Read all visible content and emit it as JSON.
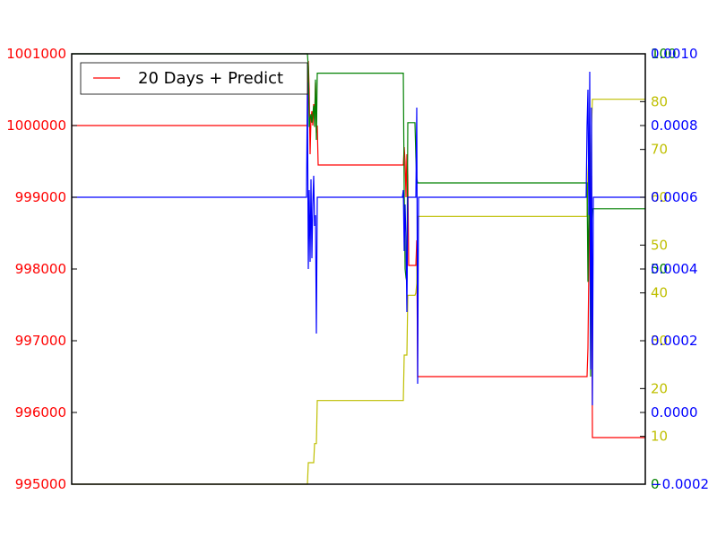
{
  "chart_data": {
    "type": "line",
    "title": "",
    "xlabel": "",
    "legend": {
      "entries": [
        "20 Days + Predict"
      ],
      "placement": "top-left"
    },
    "grid": false,
    "axes": [
      {
        "id": "red",
        "side": "left",
        "color": "#ff0000",
        "ylim": [
          995000,
          1001000
        ],
        "ticks": [
          995000,
          996000,
          997000,
          998000,
          999000,
          1000000,
          1001000
        ],
        "tick_labels": [
          "995000",
          "996000",
          "997000",
          "998000",
          "999000",
          "1000000",
          "1001000"
        ]
      },
      {
        "id": "yellow",
        "side": "right",
        "color": "#bfbf00",
        "ylim": [
          0,
          90
        ],
        "ticks": [
          10,
          20,
          30,
          40,
          50,
          60,
          70,
          80
        ],
        "tick_labels": [
          "10",
          "20",
          "30",
          "40",
          "50",
          "60",
          "70",
          "80"
        ]
      },
      {
        "id": "green",
        "side": "right",
        "color": "#008000",
        "ylim": [
          0,
          100
        ],
        "ticks": [
          0,
          50,
          100
        ],
        "tick_labels": [
          "0",
          "50",
          "100"
        ]
      },
      {
        "id": "blue",
        "side": "right",
        "color": "#0000ff",
        "ylim": [
          -0.0002,
          0.001
        ],
        "ticks": [
          -0.0002,
          0.0,
          0.0002,
          0.0004,
          0.0006,
          0.0008,
          0.001
        ],
        "tick_labels": [
          "−0.0002",
          "0.0000",
          "0.0002",
          "0.0004",
          "0.0006",
          "0.0008",
          "0.0010"
        ]
      }
    ],
    "xlim": [
      0,
      640
    ],
    "series": [
      {
        "name": "20 Days + Predict",
        "axis": "red",
        "color": "#ff0000",
        "points": [
          [
            0,
            1000000
          ],
          [
            263,
            1000000
          ],
          [
            264,
            1000900
          ],
          [
            265,
            1000500
          ],
          [
            266,
            999600
          ],
          [
            267,
            1000100
          ],
          [
            268,
            1000200
          ],
          [
            269,
            1000000
          ],
          [
            270,
            1000300
          ],
          [
            271,
            1000100
          ],
          [
            272,
            1000600
          ],
          [
            273,
            999900
          ],
          [
            274,
            1000000
          ],
          [
            275,
            999450
          ],
          [
            370,
            999450
          ],
          [
            371,
            999700
          ],
          [
            372,
            999500
          ],
          [
            373,
            999000
          ],
          [
            374,
            999600
          ],
          [
            375,
            999300
          ],
          [
            376,
            998050
          ],
          [
            384,
            998050
          ],
          [
            385,
            998400
          ],
          [
            386,
            996500
          ],
          [
            575,
            996500
          ],
          [
            576,
            996900
          ],
          [
            577,
            998000
          ],
          [
            578,
            999000
          ],
          [
            579,
            998500
          ],
          [
            580,
            999300
          ],
          [
            581,
            995650
          ],
          [
            640,
            995650
          ]
        ]
      },
      {
        "name": "",
        "axis": "yellow",
        "color": "#bfbf00",
        "points": [
          [
            0,
            0
          ],
          [
            263,
            0
          ],
          [
            264,
            4.5
          ],
          [
            270,
            4.5
          ],
          [
            271,
            8.5
          ],
          [
            273,
            8.5
          ],
          [
            274,
            17.5
          ],
          [
            370,
            17.5
          ],
          [
            371,
            27
          ],
          [
            374,
            27
          ],
          [
            375,
            39.5
          ],
          [
            383,
            39.5
          ],
          [
            384,
            40
          ],
          [
            385,
            42
          ],
          [
            386,
            56
          ],
          [
            575,
            56
          ],
          [
            576,
            65
          ],
          [
            578,
            73
          ],
          [
            579,
            60
          ],
          [
            580,
            75
          ],
          [
            581,
            80.5
          ],
          [
            640,
            80.5
          ]
        ]
      },
      {
        "name": "",
        "axis": "green",
        "color": "#008000",
        "points": [
          [
            0,
            100
          ],
          [
            263,
            100
          ],
          [
            264,
            97
          ],
          [
            265,
            83
          ],
          [
            266,
            85
          ],
          [
            267,
            86
          ],
          [
            268,
            84
          ],
          [
            269,
            86
          ],
          [
            270,
            88
          ],
          [
            271,
            83
          ],
          [
            272,
            94
          ],
          [
            273,
            80
          ],
          [
            274,
            95.5
          ],
          [
            370,
            95.5
          ],
          [
            371,
            68
          ],
          [
            372,
            50
          ],
          [
            373,
            48
          ],
          [
            374,
            47
          ],
          [
            375,
            84
          ],
          [
            383,
            84
          ],
          [
            384,
            76
          ],
          [
            385,
            71
          ],
          [
            386,
            70
          ],
          [
            575,
            70
          ],
          [
            576,
            47
          ],
          [
            577,
            64
          ],
          [
            578,
            72
          ],
          [
            579,
            25
          ],
          [
            580,
            60
          ],
          [
            581,
            64
          ],
          [
            640,
            64
          ]
        ]
      },
      {
        "name": "",
        "axis": "blue",
        "color": "#0000ff",
        "points": [
          [
            0,
            0.0006
          ],
          [
            262,
            0.0006
          ],
          [
            263,
            0.00092
          ],
          [
            264,
            0.0004
          ],
          [
            265,
            0.00062
          ],
          [
            266,
            0.00042
          ],
          [
            267,
            0.00065
          ],
          [
            268,
            0.00043
          ],
          [
            269,
            0.00058
          ],
          [
            270,
            0.00066
          ],
          [
            271,
            0.00052
          ],
          [
            272,
            0.00055
          ],
          [
            273,
            0.00022
          ],
          [
            274,
            0.0006
          ],
          [
            369,
            0.0006
          ],
          [
            370,
            0.00062
          ],
          [
            371,
            0.00045
          ],
          [
            372,
            0.00058
          ],
          [
            373,
            0.00048
          ],
          [
            374,
            0.00028
          ],
          [
            375,
            0.0006
          ],
          [
            384,
            0.0006
          ],
          [
            385,
            0.00085
          ],
          [
            386,
            8e-05
          ],
          [
            387,
            0.0006
          ],
          [
            574,
            0.0006
          ],
          [
            575,
            0.0008
          ],
          [
            576,
            0.0009
          ],
          [
            577,
            0.00055
          ],
          [
            578,
            0.00095
          ],
          [
            579,
            0.00012
          ],
          [
            580,
            0.00085
          ],
          [
            581,
            2e-05
          ],
          [
            582,
            0.0006
          ],
          [
            640,
            0.0006
          ]
        ]
      }
    ]
  }
}
